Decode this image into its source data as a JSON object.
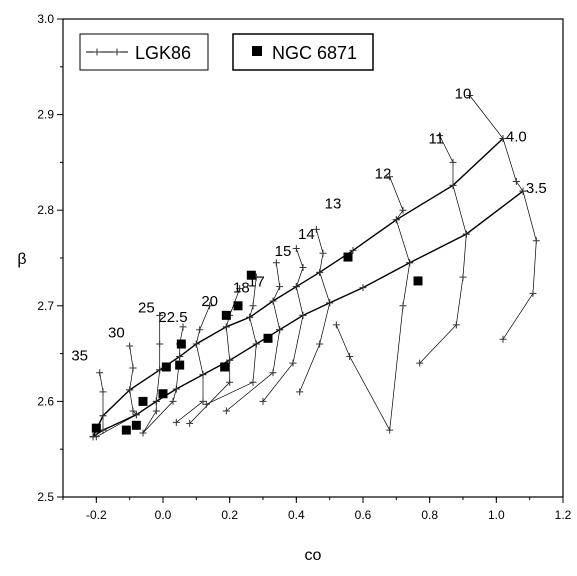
{
  "chart_data": {
    "type": "scatter",
    "title": "",
    "xlabel": "co",
    "ylabel": "β",
    "xlim": [
      -0.3,
      1.2
    ],
    "ylim": [
      2.5,
      3.0
    ],
    "xticks": [
      -0.2,
      0.0,
      0.2,
      0.4,
      0.6,
      0.8,
      1.0,
      1.2
    ],
    "xtick_labels": [
      "-0.2",
      "0.0",
      "0.2",
      "0.4",
      "0.6",
      "0.8",
      "1.0",
      "1.2"
    ],
    "yticks": [
      2.5,
      2.6,
      2.7,
      2.8,
      2.9,
      3.0
    ],
    "ytick_labels": [
      "2.5",
      "2.6",
      "2.7",
      "2.8",
      "2.9",
      "3.0"
    ],
    "grid": false,
    "legend": [
      {
        "name": "LGK86",
        "marker": "line-plus"
      },
      {
        "name": "NGC 6871",
        "marker": "filled-square"
      }
    ],
    "legend_placement": "top-left",
    "series": [
      {
        "name": "NGC 6871",
        "marker": "filled-square",
        "points": [
          [
            -0.2,
            2.572
          ],
          [
            -0.11,
            2.57
          ],
          [
            -0.08,
            2.575
          ],
          [
            -0.06,
            2.6
          ],
          [
            0.0,
            2.608
          ],
          [
            0.01,
            2.636
          ],
          [
            0.05,
            2.638
          ],
          [
            0.055,
            2.66
          ],
          [
            0.185,
            2.636
          ],
          [
            0.19,
            2.69
          ],
          [
            0.225,
            2.7
          ],
          [
            0.265,
            2.732
          ],
          [
            0.315,
            2.666
          ],
          [
            0.555,
            2.751
          ],
          [
            0.765,
            2.726
          ]
        ]
      }
    ],
    "model_lines": [
      {
        "label": "4.0",
        "points": [
          [
            -0.21,
            2.563
          ],
          [
            -0.18,
            2.585
          ],
          [
            -0.1,
            2.612
          ],
          [
            -0.01,
            2.633
          ],
          [
            0.05,
            2.647
          ],
          [
            0.1,
            2.66
          ],
          [
            0.19,
            2.678
          ],
          [
            0.26,
            2.688
          ],
          [
            0.33,
            2.705
          ],
          [
            0.4,
            2.72
          ],
          [
            0.47,
            2.735
          ],
          [
            0.57,
            2.758
          ],
          [
            0.7,
            2.79
          ],
          [
            0.87,
            2.826
          ],
          [
            1.02,
            2.875
          ]
        ]
      },
      {
        "label": "3.5",
        "points": [
          [
            -0.21,
            2.563
          ],
          [
            -0.18,
            2.57
          ],
          [
            -0.08,
            2.586
          ],
          [
            -0.02,
            2.6
          ],
          [
            0.04,
            2.613
          ],
          [
            0.12,
            2.628
          ],
          [
            0.2,
            2.643
          ],
          [
            0.28,
            2.66
          ],
          [
            0.35,
            2.675
          ],
          [
            0.42,
            2.69
          ],
          [
            0.5,
            2.703
          ],
          [
            0.6,
            2.719
          ],
          [
            0.74,
            2.745
          ],
          [
            0.91,
            2.775
          ],
          [
            1.08,
            2.82
          ]
        ]
      }
    ],
    "isochrones": [
      {
        "label": "35",
        "points": [
          [
            -0.19,
            2.63
          ],
          [
            -0.18,
            2.61
          ],
          [
            -0.18,
            2.585
          ],
          [
            -0.18,
            2.57
          ],
          [
            -0.21,
            2.563
          ]
        ]
      },
      {
        "label": "30",
        "points": [
          [
            -0.1,
            2.658
          ],
          [
            -0.09,
            2.635
          ],
          [
            -0.1,
            2.612
          ],
          [
            -0.09,
            2.59
          ],
          [
            -0.08,
            2.586
          ],
          [
            -0.2,
            2.563
          ]
        ]
      },
      {
        "label": "25",
        "points": [
          [
            -0.01,
            2.69
          ],
          [
            -0.01,
            2.66
          ],
          [
            -0.01,
            2.633
          ],
          [
            -0.02,
            2.6
          ],
          [
            -0.02,
            2.59
          ],
          [
            -0.06,
            2.567
          ]
        ]
      },
      {
        "label": "22.5",
        "points": [
          [
            0.06,
            2.678
          ],
          [
            0.05,
            2.66
          ],
          [
            0.05,
            2.647
          ],
          [
            0.04,
            2.613
          ],
          [
            0.03,
            2.6
          ],
          [
            -0.06,
            2.567
          ]
        ]
      },
      {
        "label": "20",
        "points": [
          [
            0.14,
            2.7
          ],
          [
            0.11,
            2.675
          ],
          [
            0.1,
            2.66
          ],
          [
            0.12,
            2.628
          ],
          [
            0.12,
            2.6
          ],
          [
            0.04,
            2.578
          ]
        ]
      },
      {
        "label": "18",
        "points": [
          [
            0.23,
            2.718
          ],
          [
            0.2,
            2.69
          ],
          [
            0.19,
            2.678
          ],
          [
            0.2,
            2.643
          ],
          [
            0.2,
            2.62
          ],
          [
            0.08,
            2.577
          ]
        ]
      },
      {
        "label": "17",
        "points": [
          [
            0.28,
            2.73
          ],
          [
            0.27,
            2.7
          ],
          [
            0.26,
            2.688
          ],
          [
            0.28,
            2.66
          ],
          [
            0.27,
            2.62
          ],
          [
            0.13,
            2.597
          ]
        ]
      },
      {
        "label": "15",
        "points": [
          [
            0.34,
            2.745
          ],
          [
            0.35,
            2.72
          ],
          [
            0.33,
            2.705
          ],
          [
            0.35,
            2.675
          ],
          [
            0.33,
            2.63
          ],
          [
            0.19,
            2.59
          ]
        ]
      },
      {
        "label": "14",
        "points": [
          [
            0.4,
            2.76
          ],
          [
            0.42,
            2.74
          ],
          [
            0.4,
            2.72
          ],
          [
            0.42,
            2.69
          ],
          [
            0.39,
            2.64
          ],
          [
            0.3,
            2.6
          ]
        ]
      },
      {
        "label": "13",
        "points": [
          [
            0.46,
            2.78
          ],
          [
            0.48,
            2.755
          ],
          [
            0.47,
            2.735
          ],
          [
            0.5,
            2.703
          ],
          [
            0.47,
            2.66
          ],
          [
            0.41,
            2.61
          ]
        ]
      },
      {
        "label": "12",
        "points": [
          [
            0.68,
            2.835
          ],
          [
            0.72,
            2.8
          ],
          [
            0.7,
            2.79
          ],
          [
            0.74,
            2.745
          ],
          [
            0.72,
            2.7
          ],
          [
            0.68,
            2.57
          ],
          [
            0.56,
            2.647
          ],
          [
            0.52,
            2.68
          ]
        ]
      },
      {
        "label": "11",
        "points": [
          [
            0.83,
            2.878
          ],
          [
            0.87,
            2.85
          ],
          [
            0.87,
            2.826
          ],
          [
            0.91,
            2.775
          ],
          [
            0.9,
            2.73
          ],
          [
            0.88,
            2.68
          ],
          [
            0.77,
            2.64
          ]
        ]
      },
      {
        "label": "10",
        "points": [
          [
            0.92,
            2.92
          ],
          [
            1.02,
            2.875
          ],
          [
            1.06,
            2.83
          ],
          [
            1.08,
            2.82
          ],
          [
            1.12,
            2.768
          ],
          [
            1.11,
            2.713
          ],
          [
            1.02,
            2.665
          ]
        ]
      }
    ],
    "annotations": [
      {
        "text": "35",
        "x": -0.25,
        "y": 2.643
      },
      {
        "text": "30",
        "x": -0.14,
        "y": 2.667
      },
      {
        "text": "25",
        "x": -0.05,
        "y": 2.693
      },
      {
        "text": "22.5",
        "x": 0.03,
        "y": 2.683
      },
      {
        "text": "20",
        "x": 0.14,
        "y": 2.7
      },
      {
        "text": "18",
        "x": 0.235,
        "y": 2.714
      },
      {
        "text": "17",
        "x": 0.28,
        "y": 2.72
      },
      {
        "text": "15",
        "x": 0.36,
        "y": 2.752
      },
      {
        "text": "14",
        "x": 0.43,
        "y": 2.77
      },
      {
        "text": "13",
        "x": 0.51,
        "y": 2.802
      },
      {
        "text": "12",
        "x": 0.66,
        "y": 2.833
      },
      {
        "text": "11",
        "x": 0.82,
        "y": 2.87
      },
      {
        "text": "10",
        "x": 0.9,
        "y": 2.917
      },
      {
        "text": "4.0",
        "x": 1.06,
        "y": 2.872
      },
      {
        "text": "3.5",
        "x": 1.12,
        "y": 2.818
      }
    ]
  }
}
